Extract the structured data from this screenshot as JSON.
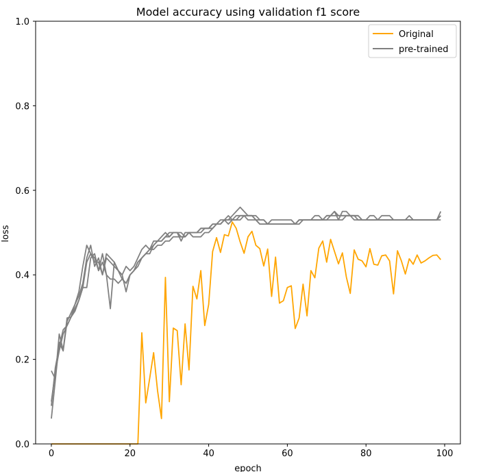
{
  "chart_data": {
    "type": "line",
    "title": "Model accuracy using validation f1 score",
    "xlabel": "epoch",
    "ylabel": "loss",
    "xlim": [
      -4,
      104
    ],
    "ylim": [
      0.0,
      1.0
    ],
    "xticks": [
      0,
      20,
      40,
      60,
      80,
      100
    ],
    "yticks": [
      0.0,
      0.2,
      0.4,
      0.6,
      0.8,
      1.0
    ],
    "ytick_labels": [
      "0.0",
      "0.2",
      "0.4",
      "0.6",
      "0.8",
      "1.0"
    ],
    "grid": false,
    "legend": {
      "position": "top-right",
      "entries": [
        {
          "label": "Original",
          "color": "#ffa500"
        },
        {
          "label": "pre-trained",
          "color": "#808080"
        }
      ]
    },
    "series": [
      {
        "name": "Original",
        "color": "#ffa500",
        "values": [
          0,
          0,
          0,
          0,
          0,
          0,
          0,
          0,
          0,
          0,
          0,
          0,
          0,
          0,
          0,
          0,
          0,
          0,
          0,
          0,
          0,
          0,
          0,
          0.263,
          0.097,
          0.155,
          0.216,
          0.126,
          0.06,
          0.394,
          0.1,
          0.274,
          0.268,
          0.14,
          0.284,
          0.175,
          0.373,
          0.343,
          0.41,
          0.28,
          0.33,
          0.455,
          0.488,
          0.453,
          0.495,
          0.492,
          0.525,
          0.51,
          0.478,
          0.451,
          0.49,
          0.503,
          0.47,
          0.462,
          0.421,
          0.461,
          0.349,
          0.442,
          0.333,
          0.339,
          0.37,
          0.374,
          0.273,
          0.298,
          0.378,
          0.303,
          0.41,
          0.393,
          0.463,
          0.48,
          0.43,
          0.484,
          0.455,
          0.426,
          0.452,
          0.395,
          0.356,
          0.459,
          0.437,
          0.433,
          0.419,
          0.462,
          0.425,
          0.423,
          0.445,
          0.447,
          0.433,
          0.355,
          0.457,
          0.433,
          0.402,
          0.438,
          0.425,
          0.447,
          0.428,
          0.433,
          0.44,
          0.446,
          0.447,
          0.436
        ]
      },
      {
        "name": "",
        "color": "#808080",
        "values": [
          0.173,
          0.154,
          0.26,
          0.222,
          0.298,
          0.3,
          0.314,
          0.34,
          0.37,
          0.37,
          0.44,
          0.45,
          0.41,
          0.45,
          0.4,
          0.39,
          0.39,
          0.38,
          0.39,
          0.38,
          0.4,
          0.41,
          0.43,
          0.44,
          0.45,
          0.46,
          0.46,
          0.47,
          0.47,
          0.48,
          0.48,
          0.49,
          0.49,
          0.49,
          0.49,
          0.5,
          0.5,
          0.5,
          0.51,
          0.51,
          0.51,
          0.52,
          0.52,
          0.52,
          0.53,
          0.53,
          0.54,
          0.55,
          0.56,
          0.55,
          0.54,
          0.54,
          0.54,
          0.53,
          0.53,
          0.52,
          0.52,
          0.52,
          0.52,
          0.52,
          0.52,
          0.52,
          0.52,
          0.53,
          0.53,
          0.53,
          0.53,
          0.53,
          0.53,
          0.53,
          0.53,
          0.53,
          0.53,
          0.53,
          0.53,
          0.54,
          0.54,
          0.54,
          0.53,
          0.53,
          0.53,
          0.53,
          0.53,
          0.53,
          0.53,
          0.53,
          0.53,
          0.53,
          0.53,
          0.53,
          0.53,
          0.53,
          0.53,
          0.53,
          0.53,
          0.53,
          0.53,
          0.53,
          0.53,
          0.53
        ]
      },
      {
        "name": "",
        "color": "#808080",
        "values": [
          0.1,
          0.17,
          0.22,
          0.26,
          0.28,
          0.3,
          0.33,
          0.35,
          0.38,
          0.44,
          0.47,
          0.42,
          0.44,
          0.4,
          0.45,
          0.44,
          0.43,
          0.41,
          0.4,
          0.36,
          0.4,
          0.41,
          0.42,
          0.44,
          0.45,
          0.45,
          0.47,
          0.48,
          0.49,
          0.5,
          0.49,
          0.5,
          0.5,
          0.48,
          0.5,
          0.5,
          0.49,
          0.49,
          0.49,
          0.5,
          0.5,
          0.51,
          0.52,
          0.52,
          0.53,
          0.54,
          0.53,
          0.53,
          0.53,
          0.54,
          0.54,
          0.54,
          0.53,
          0.52,
          0.52,
          0.52,
          0.53,
          0.53,
          0.53,
          0.53,
          0.53,
          0.53,
          0.52,
          0.53,
          0.53,
          0.53,
          0.53,
          0.53,
          0.53,
          0.53,
          0.54,
          0.54,
          0.55,
          0.54,
          0.54,
          0.54,
          0.54,
          0.54,
          0.54,
          0.53,
          0.53,
          0.53,
          0.53,
          0.53,
          0.54,
          0.54,
          0.54,
          0.53,
          0.53,
          0.53,
          0.53,
          0.53,
          0.53,
          0.53,
          0.53,
          0.53,
          0.53,
          0.53,
          0.53,
          0.55
        ]
      },
      {
        "name": "",
        "color": "#808080",
        "values": [
          0.06,
          0.15,
          0.24,
          0.22,
          0.29,
          0.31,
          0.33,
          0.36,
          0.42,
          0.47,
          0.45,
          0.44,
          0.41,
          0.43,
          0.4,
          0.32,
          0.43,
          0.41,
          0.4,
          0.42,
          0.41,
          0.42,
          0.44,
          0.46,
          0.47,
          0.46,
          0.48,
          0.48,
          0.48,
          0.49,
          0.5,
          0.5,
          0.5,
          0.5,
          0.49,
          0.5,
          0.5,
          0.5,
          0.51,
          0.51,
          0.51,
          0.52,
          0.52,
          0.53,
          0.53,
          0.52,
          0.53,
          0.54,
          0.54,
          0.54,
          0.53,
          0.53,
          0.53,
          0.52,
          0.52,
          0.52,
          0.52,
          0.52,
          0.52,
          0.52,
          0.52,
          0.52,
          0.52,
          0.52,
          0.53,
          0.53,
          0.53,
          0.54,
          0.54,
          0.53,
          0.54,
          0.54,
          0.55,
          0.53,
          0.55,
          0.55,
          0.54,
          0.53,
          0.53,
          0.53,
          0.53,
          0.54,
          0.54,
          0.53,
          0.53,
          0.53,
          0.53,
          0.53,
          0.53,
          0.53,
          0.53,
          0.54,
          0.53,
          0.53,
          0.53,
          0.53,
          0.53,
          0.53,
          0.53,
          0.54
        ]
      },
      {
        "name": "",
        "color": "#808080",
        "values": [
          0.09,
          0.18,
          0.23,
          0.27,
          0.28,
          0.3,
          0.32,
          0.34,
          0.37,
          0.43,
          0.45,
          0.43,
          0.43,
          0.4,
          0.44,
          0.43,
          0.42,
          0.41,
          0.39,
          0.38,
          0.4,
          0.41,
          0.43,
          0.44,
          0.45,
          0.46,
          0.47,
          0.48,
          0.48,
          0.49,
          0.49,
          0.5,
          0.5,
          0.49,
          0.49,
          0.5,
          0.5,
          0.5,
          0.5,
          0.51,
          0.51,
          0.51,
          0.52,
          0.52,
          0.53,
          0.53,
          0.53,
          0.53,
          0.54,
          0.54,
          0.54,
          0.54,
          0.53,
          0.53,
          0.53,
          0.52,
          0.52,
          0.52,
          0.52,
          0.52,
          0.52,
          0.52,
          0.52,
          0.53,
          0.53,
          0.53,
          0.53,
          0.53,
          0.53,
          0.53,
          0.53,
          0.54,
          0.54,
          0.54,
          0.54,
          0.54,
          0.54,
          0.54,
          0.54,
          0.53,
          0.53,
          0.53,
          0.53,
          0.53,
          0.53,
          0.53,
          0.53,
          0.53,
          0.53,
          0.53,
          0.53,
          0.53,
          0.53,
          0.53,
          0.53,
          0.53,
          0.53,
          0.53,
          0.53,
          0.54
        ]
      }
    ]
  }
}
